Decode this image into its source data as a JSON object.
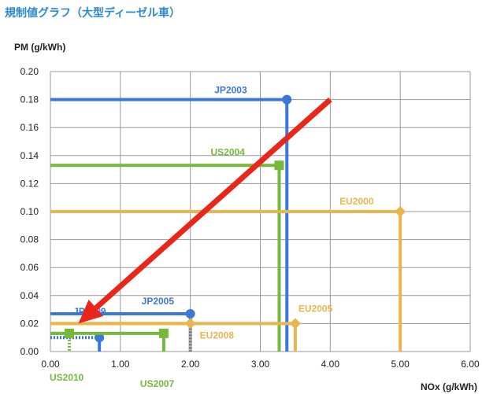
{
  "chart_data": {
    "type": "line",
    "title": "規制値グラフ（大型ディーゼル車）",
    "ylabel": "PM (g/kWh)",
    "xlabel": "NOx (g/kWh)",
    "xlim": [
      0,
      6
    ],
    "ylim": [
      0,
      0.2
    ],
    "xticks": [
      "0.00",
      "1.00",
      "2.00",
      "3.00",
      "4.00",
      "5.00",
      "6.00"
    ],
    "yticks": [
      "0.00",
      "0.02",
      "0.04",
      "0.06",
      "0.08",
      "0.10",
      "0.12",
      "0.14",
      "0.16",
      "0.18",
      "0.20"
    ],
    "grid": true,
    "series": [
      {
        "name": "JP2003",
        "nox": 3.38,
        "pm": 0.18,
        "color": "#3b78d8",
        "style": "solid"
      },
      {
        "name": "JP2005",
        "nox": 2.0,
        "pm": 0.027,
        "color": "#3b78d8",
        "style": "solid"
      },
      {
        "name": "JP2009",
        "nox": 0.7,
        "pm": 0.01,
        "color": "#3b78d8",
        "style": "dotted"
      },
      {
        "name": "US2004",
        "nox": 3.27,
        "pm": 0.133,
        "color": "#76b83c",
        "style": "solid"
      },
      {
        "name": "US2007",
        "nox": 1.62,
        "pm": 0.013,
        "color": "#76b83c",
        "style": "solid"
      },
      {
        "name": "US2010",
        "nox": 0.27,
        "pm": 0.013,
        "color": "#76b83c",
        "style": "dotted"
      },
      {
        "name": "EU2000",
        "nox": 5.0,
        "pm": 0.1,
        "color": "#e8b64c",
        "style": "solid"
      },
      {
        "name": "EU2005",
        "nox": 3.5,
        "pm": 0.02,
        "color": "#e8b64c",
        "style": "solid"
      },
      {
        "name": "EU2008",
        "nox": 2.0,
        "pm": 0.02,
        "color": "#e8b64c",
        "style": "solid"
      }
    ],
    "labels": {
      "JP2003": "JP2003",
      "JP2005": "JP2005",
      "JP2009": "JP2009",
      "US2004": "US2004",
      "US2007": "US2007",
      "US2010": "US2010",
      "EU2000": "EU2000",
      "EU2005": "EU2005",
      "EU2008": "EU2008"
    },
    "arrow": {
      "from": [
        4.0,
        0.18
      ],
      "to": [
        0.4,
        0.02
      ],
      "color": "#e8261a"
    }
  }
}
